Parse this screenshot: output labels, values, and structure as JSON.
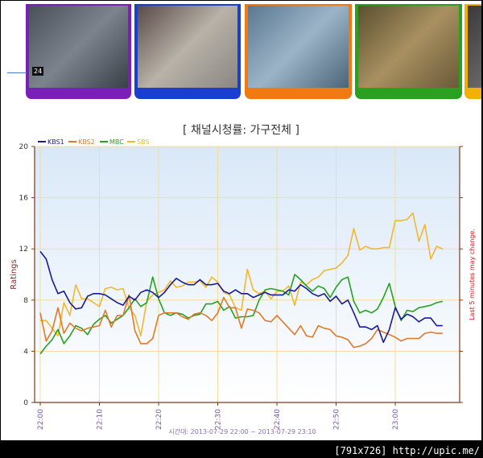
{
  "thumbnails": [
    {
      "name": "thumb-1",
      "border": "#7a1fb8",
      "tag": "24"
    },
    {
      "name": "thumb-2",
      "border": "#1a3fd0"
    },
    {
      "name": "thumb-3",
      "border": "#f07a10"
    },
    {
      "name": "thumb-4",
      "border": "#2aa020"
    },
    {
      "name": "thumb-5",
      "border": "#f2b000"
    }
  ],
  "watermark": "[791x726] http://upic.me/",
  "chart_data": {
    "type": "line",
    "title": "[ 채널시청률: 가구전체 ]",
    "ylabel": "Ratings",
    "right_note": "Last 5 minutes may change.",
    "x_caption": "시간대: 2013-07-29 22:00 ~ 2013-07-29 23:10",
    "ylim": [
      0,
      20
    ],
    "yticks": [
      0,
      4,
      8,
      12,
      16,
      20
    ],
    "xticks": [
      "22:00",
      "22:10",
      "22:20",
      "22:30",
      "22:40",
      "22:50",
      "23:00"
    ],
    "minutes": 68,
    "grid": true,
    "legend_position": "top-left",
    "series": [
      {
        "name": "KBS1",
        "color": "#1a1a9a",
        "values": [
          11.8,
          11.2,
          9.6,
          8.5,
          8.7,
          7.8,
          7.3,
          7.4,
          8.3,
          8.5,
          8.5,
          8.4,
          8.1,
          7.8,
          7.6,
          8.3,
          8.0,
          8.6,
          8.8,
          8.6,
          8.2,
          8.6,
          9.2,
          9.7,
          9.4,
          9.2,
          9.2,
          9.6,
          9.2,
          9.2,
          9.3,
          8.7,
          8.5,
          8.8,
          8.5,
          8.5,
          8.2,
          8.4,
          8.6,
          8.4,
          8.4,
          8.4,
          8.8,
          8.7,
          9.2,
          8.9,
          8.5,
          8.3,
          8.5,
          7.9,
          8.3,
          7.7,
          8.0,
          7.0,
          5.9,
          5.9,
          5.7,
          6.0,
          4.7,
          5.7,
          7.4,
          6.5,
          6.9,
          6.7,
          6.3,
          6.6,
          6.6,
          6.0,
          6.0
        ]
      },
      {
        "name": "KBS2",
        "color": "#e07a28",
        "values": [
          7.0,
          4.8,
          5.6,
          7.4,
          5.4,
          6.2,
          5.8,
          5.6,
          5.8,
          5.9,
          6.0,
          7.2,
          5.9,
          6.8,
          6.8,
          8.4,
          5.6,
          4.6,
          4.6,
          5.0,
          6.8,
          7.0,
          7.0,
          7.0,
          6.7,
          6.5,
          6.9,
          7.0,
          6.8,
          6.4,
          7.0,
          8.2,
          7.4,
          7.4,
          5.8,
          7.3,
          7.2,
          7.0,
          6.4,
          6.3,
          6.8,
          6.3,
          5.8,
          5.3,
          6.0,
          5.2,
          5.1,
          6.0,
          5.8,
          5.7,
          5.2,
          5.1,
          4.9,
          4.3,
          4.4,
          4.6,
          5.0,
          5.7,
          5.5,
          5.3,
          5.1,
          4.8,
          5.0,
          5.0,
          5.0,
          5.4,
          5.5,
          5.4,
          5.4
        ]
      },
      {
        "name": "MBC",
        "color": "#28a020",
        "values": [
          3.8,
          4.4,
          4.9,
          5.7,
          4.6,
          5.2,
          6.0,
          5.8,
          5.3,
          6.1,
          6.5,
          6.8,
          6.2,
          6.5,
          6.8,
          7.4,
          8.1,
          7.5,
          7.8,
          9.8,
          8.1,
          7.0,
          6.8,
          7.0,
          6.9,
          6.6,
          6.8,
          6.9,
          7.7,
          7.7,
          7.9,
          7.2,
          7.5,
          6.6,
          6.7,
          6.7,
          6.8,
          8.0,
          8.8,
          8.9,
          8.8,
          8.7,
          8.4,
          10.0,
          9.6,
          9.1,
          8.7,
          9.1,
          8.9,
          8.2,
          9.0,
          9.6,
          9.8,
          7.9,
          7.0,
          7.2,
          7.0,
          7.3,
          8.2,
          9.3,
          7.5,
          6.4,
          7.2,
          7.1,
          7.4,
          7.5,
          7.6,
          7.8,
          7.9
        ]
      },
      {
        "name": "SBS",
        "color": "#f0b830",
        "values": [
          6.4,
          6.4,
          5.8,
          5.2,
          7.8,
          6.8,
          9.2,
          8.1,
          8.1,
          7.8,
          7.5,
          8.9,
          9.0,
          8.8,
          8.9,
          7.4,
          6.8,
          5.2,
          7.9,
          8.4,
          8.6,
          8.8,
          9.5,
          9.0,
          9.1,
          9.4,
          9.4,
          9.5,
          9.0,
          9.8,
          9.4,
          8.6,
          8.4,
          7.4,
          7.2,
          10.4,
          8.8,
          8.5,
          8.7,
          8.1,
          8.7,
          8.7,
          9.1,
          7.6,
          9.4,
          9.2,
          9.6,
          9.8,
          10.3,
          10.4,
          10.5,
          10.9,
          11.5,
          13.6,
          11.9,
          12.2,
          12.0,
          12.0,
          12.1,
          12.1,
          14.2,
          14.2,
          14.3,
          14.8,
          12.6,
          13.9,
          11.2,
          12.2,
          12.0
        ]
      }
    ]
  }
}
